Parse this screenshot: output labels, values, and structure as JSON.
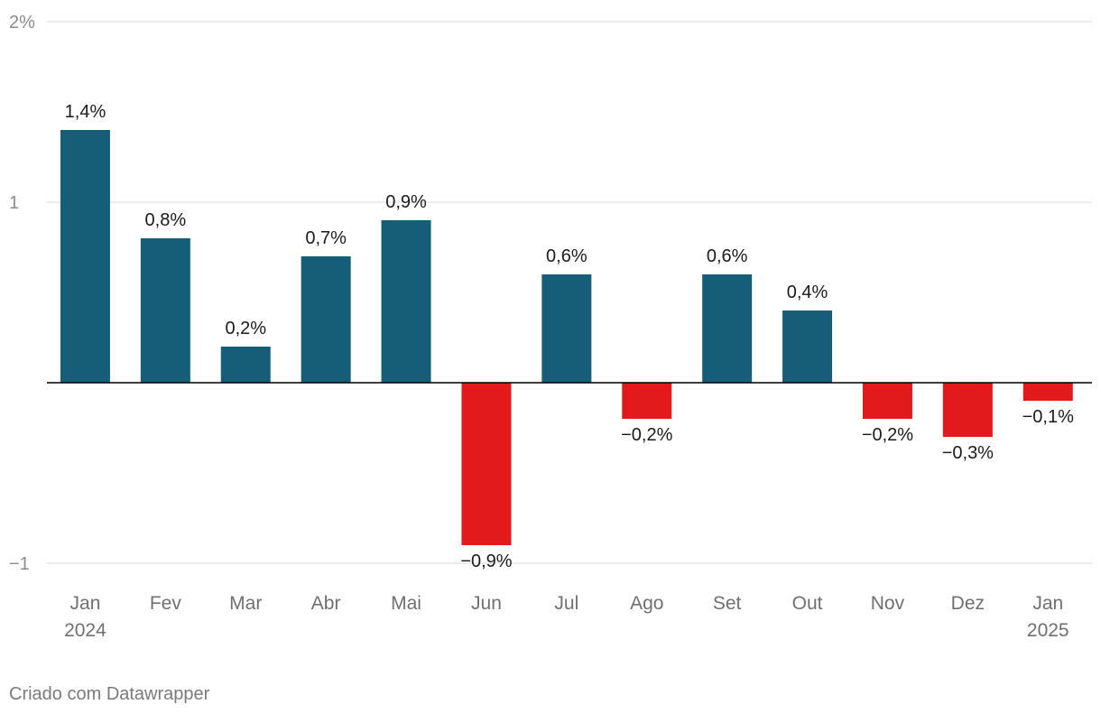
{
  "chart_data": {
    "type": "bar",
    "title": "",
    "xlabel": "",
    "ylabel": "",
    "ylim": [
      -1,
      2
    ],
    "y_ticks": [
      {
        "value": 2,
        "label": "2%"
      },
      {
        "value": 1,
        "label": "1"
      },
      {
        "value": -1,
        "label": "−1"
      }
    ],
    "grid": true,
    "categories": [
      {
        "month": "Jan",
        "year": "2024"
      },
      {
        "month": "Fev",
        "year": ""
      },
      {
        "month": "Mar",
        "year": ""
      },
      {
        "month": "Abr",
        "year": ""
      },
      {
        "month": "Mai",
        "year": ""
      },
      {
        "month": "Jun",
        "year": ""
      },
      {
        "month": "Jul",
        "year": ""
      },
      {
        "month": "Ago",
        "year": ""
      },
      {
        "month": "Set",
        "year": ""
      },
      {
        "month": "Out",
        "year": ""
      },
      {
        "month": "Nov",
        "year": ""
      },
      {
        "month": "Dez",
        "year": ""
      },
      {
        "month": "Jan",
        "year": "2025"
      }
    ],
    "values": [
      1.4,
      0.8,
      0.2,
      0.7,
      0.9,
      -0.9,
      0.6,
      -0.2,
      0.6,
      0.4,
      -0.2,
      -0.3,
      -0.1
    ],
    "value_labels": [
      "1,4%",
      "0,8%",
      "0,2%",
      "0,7%",
      "0,9%",
      "−0,9%",
      "0,6%",
      "−0,2%",
      "0,6%",
      "0,4%",
      "−0,2%",
      "−0,3%",
      "−0,1%"
    ],
    "colors": {
      "positive": "#165e78",
      "negative": "#e31a1c",
      "grid": "#d9d9d9",
      "zero_line": "#000000",
      "tick_text": "#8c8c8c",
      "category_text": "#707070",
      "value_text": "#1a1a1a"
    }
  },
  "footer": {
    "credit": "Criado com Datawrapper"
  }
}
